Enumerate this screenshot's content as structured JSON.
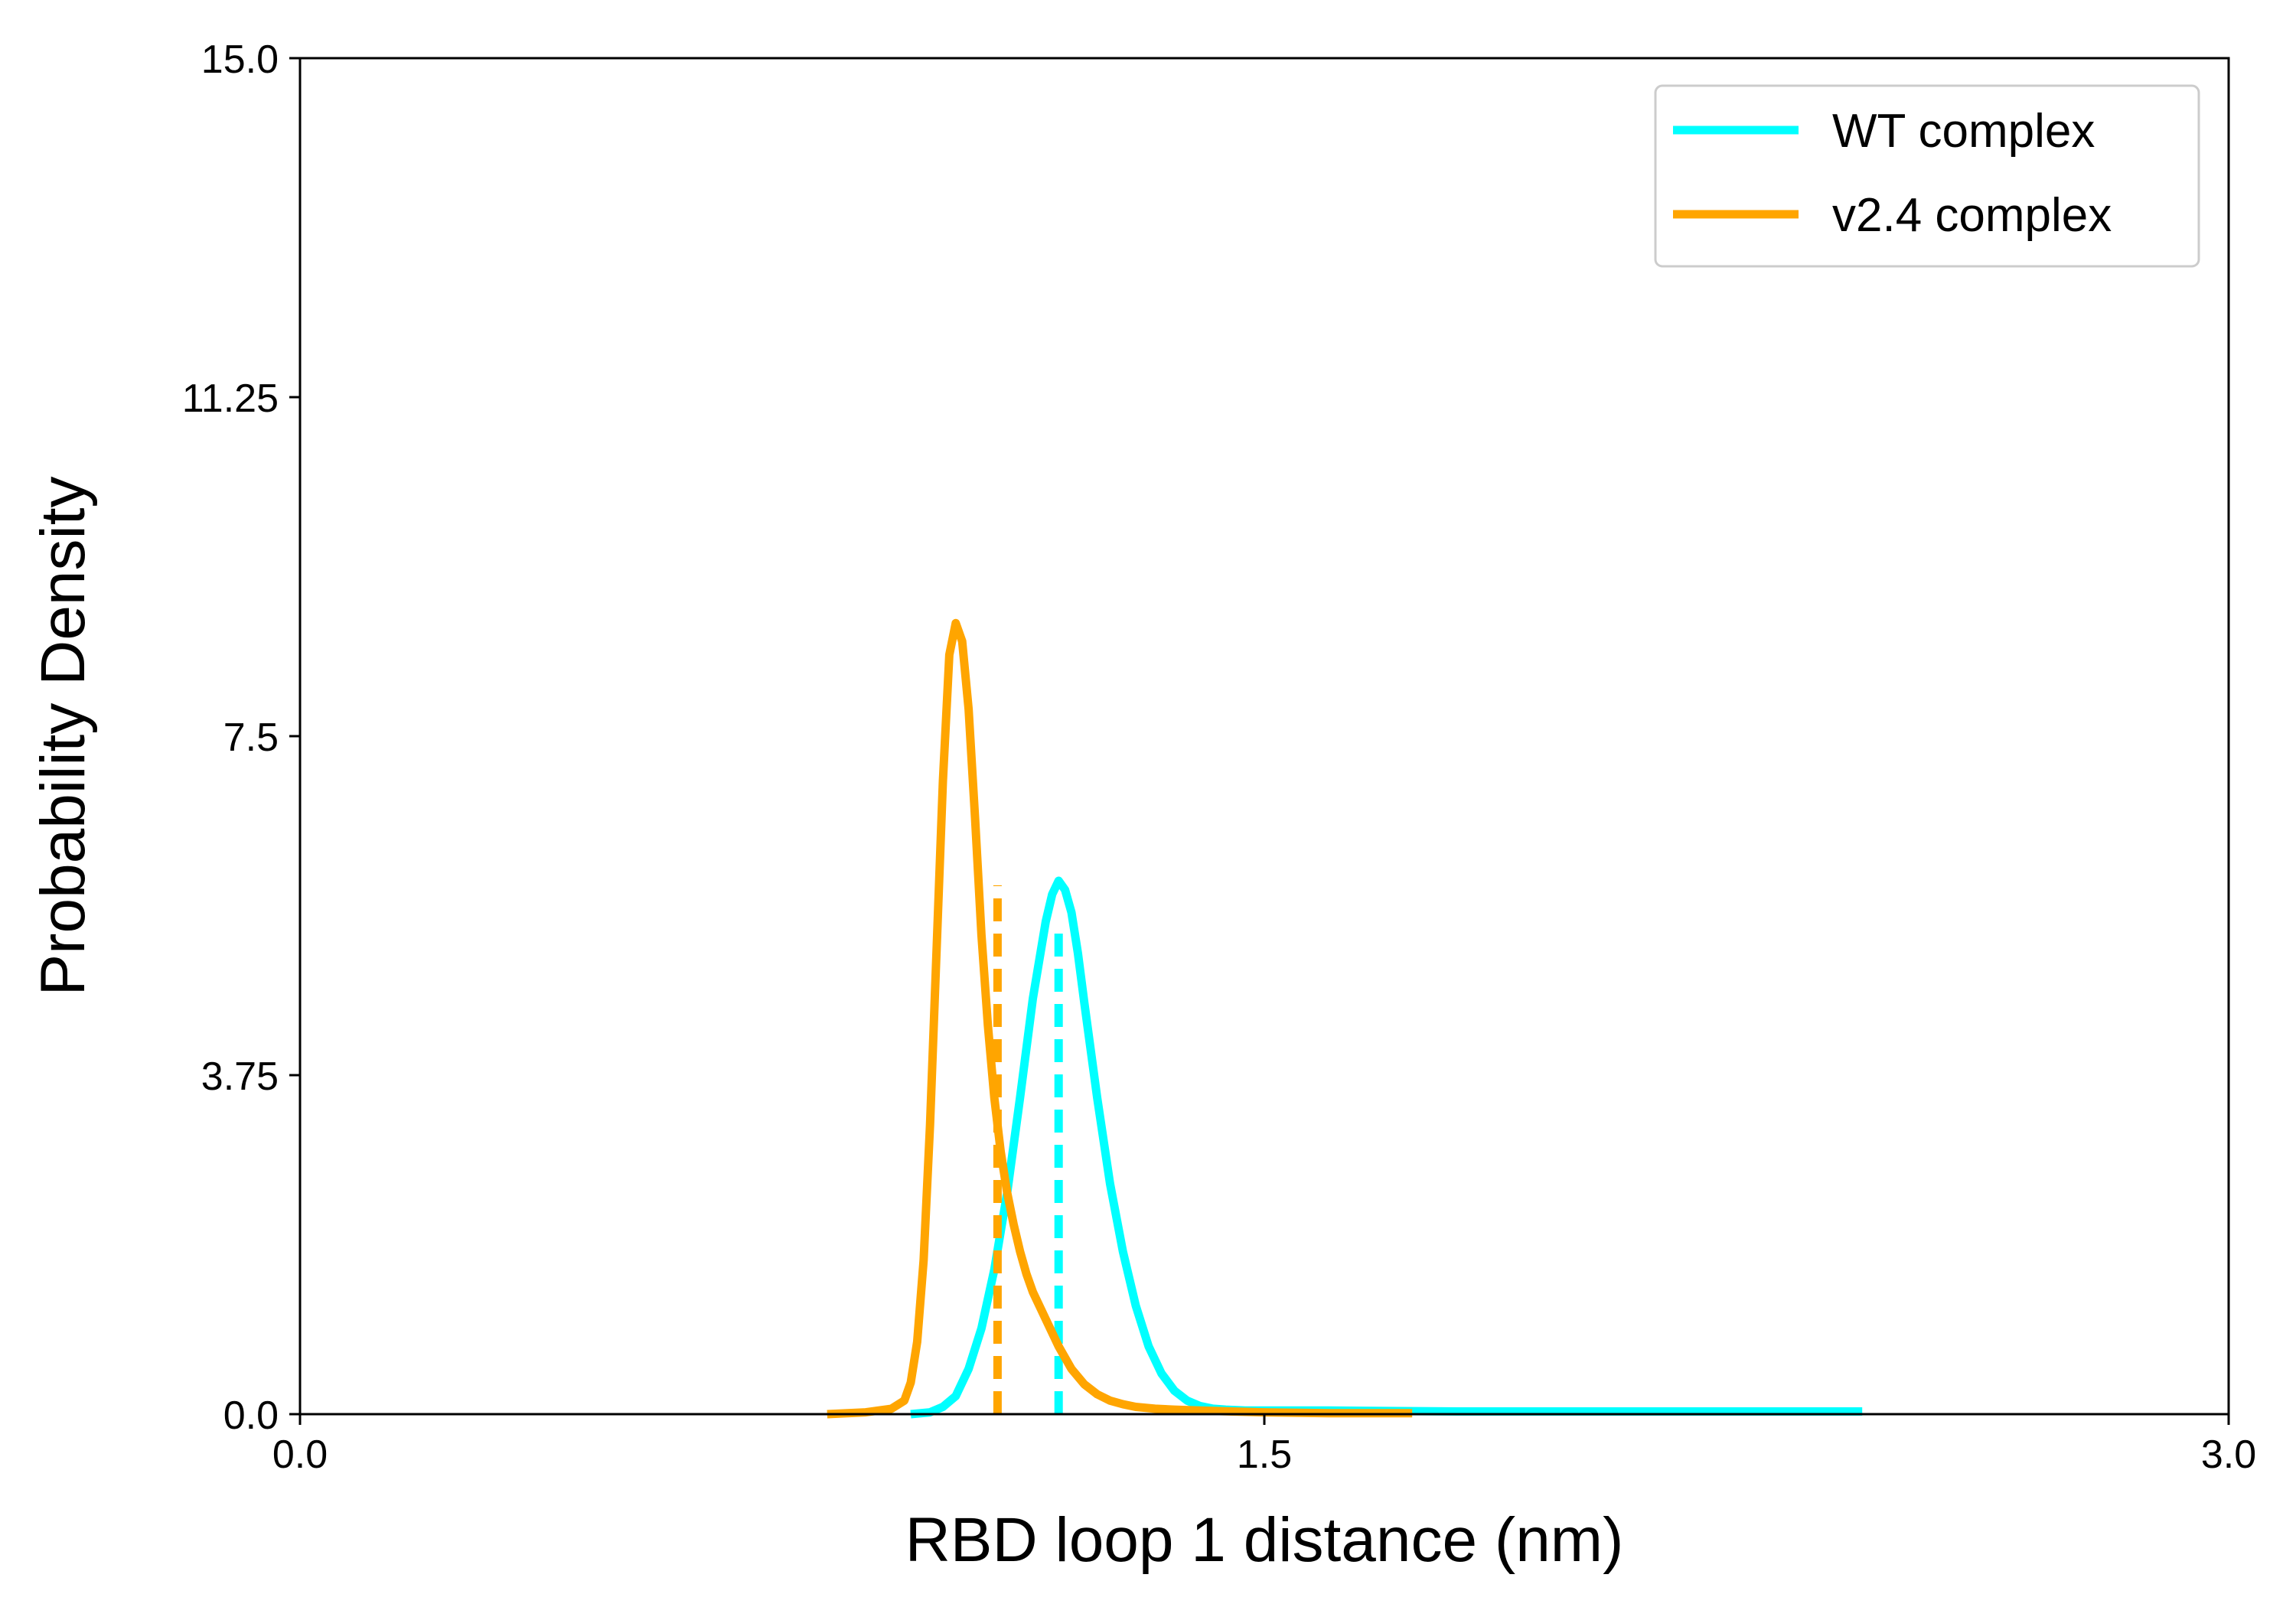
{
  "chart_data": {
    "type": "line",
    "title": "",
    "xlabel": "RBD loop 1 distance (nm)",
    "ylabel": "Probability Density",
    "xlim": [
      0.0,
      3.0
    ],
    "ylim": [
      0.0,
      15.0
    ],
    "xticks": [
      0.0,
      1.5,
      3.0
    ],
    "xtick_labels": [
      "0.0",
      "1.5",
      "3.0"
    ],
    "yticks": [
      0.0,
      3.75,
      7.5,
      11.25,
      15.0
    ],
    "ytick_labels": [
      "0.0",
      "3.75",
      "7.5",
      "11.25",
      "15.0"
    ],
    "grid": false,
    "legend_position": "top-right",
    "series": [
      {
        "name": "WT complex",
        "color": "#00FFFF",
        "x": [
          0.95,
          0.98,
          1.0,
          1.02,
          1.04,
          1.06,
          1.08,
          1.1,
          1.12,
          1.14,
          1.16,
          1.17,
          1.18,
          1.19,
          1.2,
          1.21,
          1.22,
          1.24,
          1.26,
          1.28,
          1.3,
          1.32,
          1.34,
          1.36,
          1.38,
          1.4,
          1.42,
          1.44,
          1.47,
          1.5,
          1.6,
          1.8,
          2.0,
          2.2,
          2.43
        ],
        "y": [
          0.0,
          0.02,
          0.08,
          0.2,
          0.5,
          0.95,
          1.6,
          2.45,
          3.5,
          4.6,
          5.45,
          5.75,
          5.9,
          5.8,
          5.55,
          5.1,
          4.55,
          3.5,
          2.55,
          1.8,
          1.2,
          0.75,
          0.45,
          0.26,
          0.15,
          0.09,
          0.06,
          0.05,
          0.04,
          0.04,
          0.04,
          0.03,
          0.03,
          0.03,
          0.03
        ],
        "mean_x": 1.18,
        "mean_y": 5.35
      },
      {
        "name": "v2.4 complex",
        "color": "#FFA500",
        "x": [
          0.82,
          0.88,
          0.92,
          0.94,
          0.95,
          0.96,
          0.97,
          0.98,
          0.99,
          1.0,
          1.01,
          1.02,
          1.03,
          1.04,
          1.05,
          1.06,
          1.07,
          1.08,
          1.09,
          1.1,
          1.11,
          1.12,
          1.13,
          1.14,
          1.16,
          1.18,
          1.2,
          1.22,
          1.24,
          1.26,
          1.28,
          1.3,
          1.33,
          1.36,
          1.4,
          1.45,
          1.5,
          1.6,
          1.73
        ],
        "y": [
          0.0,
          0.02,
          0.06,
          0.15,
          0.35,
          0.8,
          1.7,
          3.2,
          5.1,
          7.0,
          8.4,
          8.75,
          8.55,
          7.8,
          6.6,
          5.3,
          4.3,
          3.5,
          2.9,
          2.45,
          2.1,
          1.8,
          1.55,
          1.35,
          1.05,
          0.75,
          0.5,
          0.33,
          0.22,
          0.15,
          0.11,
          0.08,
          0.06,
          0.05,
          0.04,
          0.03,
          0.02,
          0.01,
          0.01
        ],
        "mean_x": 1.085,
        "mean_y": 5.85
      }
    ]
  }
}
